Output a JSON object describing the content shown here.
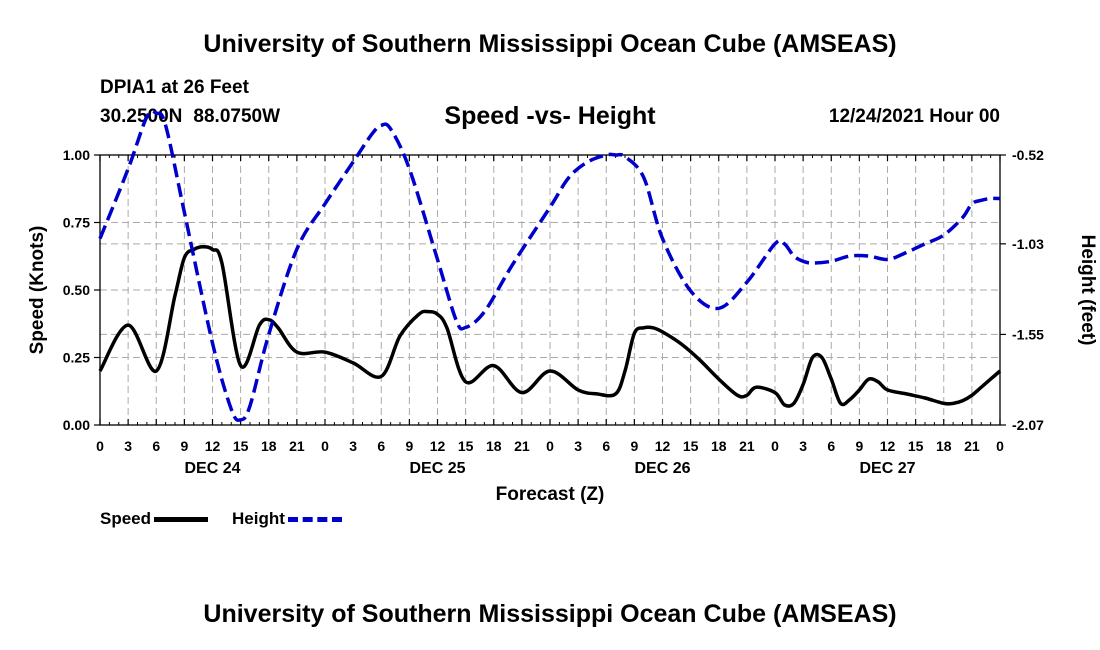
{
  "header": {
    "title": "University of Southern Mississippi Ocean Cube (AMSEAS)",
    "station": "DPIA1 at 26 Feet",
    "lat": "30.2500N",
    "lon": "88.0750W",
    "subtitle": "Speed -vs- Height",
    "datetime": "12/24/2021 Hour 00"
  },
  "footer": {
    "title": "University of Southern Mississippi Ocean Cube (AMSEAS)"
  },
  "colors": {
    "speed": "#000000",
    "height": "#0000cc",
    "grid": "#aaaaaa"
  },
  "legend": {
    "speed_label": "Speed",
    "height_label": "Height"
  },
  "chart_data": {
    "type": "line",
    "xlabel": "Forecast (Z)",
    "ylabel_left": "Speed (Knots)",
    "ylabel_right": "Height (feet)",
    "x_tick_labels": [
      "0",
      "3",
      "6",
      "9",
      "12",
      "15",
      "18",
      "21",
      "0",
      "3",
      "6",
      "9",
      "12",
      "15",
      "18",
      "21",
      "0",
      "3",
      "6",
      "9",
      "12",
      "15",
      "18",
      "21",
      "0",
      "3",
      "6",
      "9",
      "12",
      "15",
      "18",
      "21",
      "0"
    ],
    "date_labels": [
      {
        "label": "DEC 24",
        "hour": 12
      },
      {
        "label": "DEC 25",
        "hour": 36
      },
      {
        "label": "DEC 26",
        "hour": 60
      },
      {
        "label": "DEC 27",
        "hour": 84
      }
    ],
    "xlim": [
      0,
      96
    ],
    "y_left": {
      "range": [
        0,
        1
      ],
      "ticks": [
        0,
        0.25,
        0.5,
        0.75,
        1.0
      ],
      "tick_labels": [
        "0.00",
        "0.25",
        "0.50",
        "0.75",
        "1.00"
      ]
    },
    "y_right": {
      "range": [
        -2.07,
        -0.52
      ],
      "ticks": [
        -0.52,
        -1.03,
        -1.55,
        -2.07
      ],
      "tick_labels": [
        "-0.52",
        "-1.03",
        "-1.55",
        "-2.07"
      ]
    },
    "series": [
      {
        "name": "Speed",
        "axis": "left",
        "style": "solid",
        "x": [
          0,
          3,
          6,
          8,
          9,
          10,
          11,
          12,
          13,
          15,
          17,
          18,
          19,
          21,
          24,
          27,
          30,
          32,
          34,
          35,
          36,
          37,
          39,
          42,
          45,
          48,
          51,
          53,
          55,
          56,
          57,
          58,
          59,
          60,
          62,
          64,
          66,
          68,
          69,
          70,
          72,
          73,
          74,
          75,
          76,
          77,
          78,
          79,
          80,
          81,
          82,
          83,
          84,
          86,
          88,
          90,
          91,
          92,
          93,
          94,
          95,
          96
        ],
        "values": [
          0.2,
          0.37,
          0.2,
          0.48,
          0.62,
          0.65,
          0.66,
          0.65,
          0.6,
          0.22,
          0.37,
          0.39,
          0.36,
          0.27,
          0.27,
          0.23,
          0.18,
          0.33,
          0.41,
          0.42,
          0.41,
          0.36,
          0.16,
          0.22,
          0.12,
          0.2,
          0.13,
          0.115,
          0.115,
          0.2,
          0.34,
          0.36,
          0.36,
          0.345,
          0.3,
          0.24,
          0.17,
          0.11,
          0.11,
          0.14,
          0.12,
          0.075,
          0.08,
          0.15,
          0.25,
          0.25,
          0.17,
          0.08,
          0.095,
          0.13,
          0.17,
          0.16,
          0.13,
          0.115,
          0.1,
          0.08,
          0.08,
          0.09,
          0.11,
          0.14,
          0.17,
          0.2
        ]
      },
      {
        "name": "Height",
        "axis": "right",
        "style": "dashed",
        "x": [
          0,
          3,
          5,
          6,
          7,
          9,
          12,
          14,
          15,
          16,
          18,
          21,
          24,
          27,
          29,
          30,
          31,
          33,
          36,
          38,
          39,
          41,
          44,
          48,
          50,
          52,
          54,
          55,
          56,
          58,
          60,
          63,
          66,
          69,
          72,
          73,
          74,
          75,
          76,
          78,
          80,
          82,
          84,
          86,
          88,
          90,
          92,
          93,
          94,
          95,
          96
        ],
        "values": [
          -1.0,
          -0.6,
          -0.3,
          -0.28,
          -0.35,
          -0.85,
          -1.6,
          -1.98,
          -2.04,
          -1.96,
          -1.55,
          -1.06,
          -0.8,
          -0.56,
          -0.4,
          -0.35,
          -0.37,
          -0.6,
          -1.12,
          -1.47,
          -1.51,
          -1.42,
          -1.15,
          -0.82,
          -0.65,
          -0.56,
          -0.52,
          -0.52,
          -0.53,
          -0.65,
          -1.0,
          -1.3,
          -1.4,
          -1.25,
          -1.03,
          -1.03,
          -1.1,
          -1.13,
          -1.14,
          -1.13,
          -1.1,
          -1.1,
          -1.12,
          -1.08,
          -1.03,
          -0.98,
          -0.88,
          -0.8,
          -0.78,
          -0.77,
          -0.77
        ]
      }
    ]
  }
}
